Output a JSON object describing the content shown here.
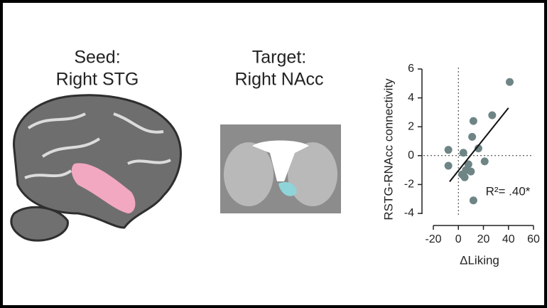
{
  "seed_label": {
    "title": "Seed:",
    "region": "Right STG"
  },
  "target_label": {
    "title": "Target:",
    "region": "Right NAcc"
  },
  "chart_data": {
    "type": "scatter",
    "xlabel": "ΔLiking",
    "ylabel": "RSTG-RNAcc connectivity",
    "annotation": "R²= .40*",
    "x": [
      41,
      27,
      12,
      11,
      16,
      -8,
      4,
      21,
      -8,
      8,
      6,
      10,
      3,
      5,
      12
    ],
    "y": [
      5.1,
      2.8,
      2.4,
      1.3,
      0.5,
      0.4,
      0.2,
      -0.4,
      -0.7,
      -0.6,
      -1.0,
      -1.1,
      -1.3,
      -1.5,
      -3.1
    ],
    "color": "#6f8585",
    "fit_line": {
      "x": [
        -7,
        40
      ],
      "y": [
        -1.8,
        3.3
      ],
      "color": "#111111"
    },
    "xlim": [
      -20,
      60
    ],
    "xticks": [
      -20,
      0,
      20,
      40,
      60
    ],
    "ylim": [
      -4,
      6
    ],
    "yticks": [
      -4,
      -2,
      0,
      2,
      4,
      6
    ]
  }
}
